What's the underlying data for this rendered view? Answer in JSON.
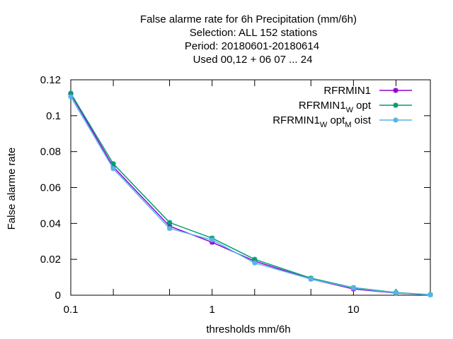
{
  "chart_data": {
    "type": "line",
    "title_lines": [
      "False alarme rate  for 6h Precipitation (mm/6h)",
      "Selection: ALL    152 stations",
      "Period: 20180601-20180614",
      "Used  00,12  + 06 07 ... 24"
    ],
    "xlabel": "thresholds mm/6h",
    "ylabel": "False alarme rate",
    "x_scale": "log",
    "xlim": [
      0.1,
      35
    ],
    "ylim": [
      0,
      0.12
    ],
    "x_ticks": [
      {
        "value": 0.1,
        "label": "0.1"
      },
      {
        "value": 1,
        "label": "1"
      },
      {
        "value": 10,
        "label": "10"
      }
    ],
    "x_minor_ticks": [
      0.2,
      0.5,
      2,
      5,
      20
    ],
    "y_ticks": [
      {
        "value": 0,
        "label": "0"
      },
      {
        "value": 0.02,
        "label": "0.02"
      },
      {
        "value": 0.04,
        "label": "0.04"
      },
      {
        "value": 0.06,
        "label": "0.06"
      },
      {
        "value": 0.08,
        "label": "0.08"
      },
      {
        "value": 0.1,
        "label": "0.1"
      },
      {
        "value": 0.12,
        "label": "0.12"
      }
    ],
    "grid": false,
    "legend_position": "top-right",
    "x": [
      0.1,
      0.2,
      0.5,
      1,
      2,
      5,
      10,
      20,
      35
    ],
    "series": [
      {
        "name": "RFRMIN1",
        "legend": {
          "base": "RFRMIN1",
          "parts": []
        },
        "color": "#9400d3",
        "values": [
          0.112,
          0.0715,
          0.0385,
          0.0295,
          0.019,
          0.009,
          0.0035,
          0.0012,
          0.0002
        ]
      },
      {
        "name": "RFRMIN1_W opt",
        "legend": {
          "base": "RFRMIN1",
          "parts": [
            {
              "sub": "W",
              "text": " opt"
            }
          ]
        },
        "color": "#009e73",
        "values": [
          0.1125,
          0.0732,
          0.0405,
          0.0318,
          0.02,
          0.0095,
          0.0042,
          0.0015,
          0.0003
        ]
      },
      {
        "name": "RFRMIN1_W opt_M oist",
        "legend": {
          "base": "RFRMIN1",
          "parts": [
            {
              "sub": "W",
              "text": " opt"
            },
            {
              "sub": "M",
              "text": " oist"
            }
          ]
        },
        "color": "#56b4e9",
        "values": [
          0.1105,
          0.0705,
          0.0372,
          0.0308,
          0.018,
          0.009,
          0.004,
          0.0013,
          0.0002
        ]
      }
    ]
  }
}
